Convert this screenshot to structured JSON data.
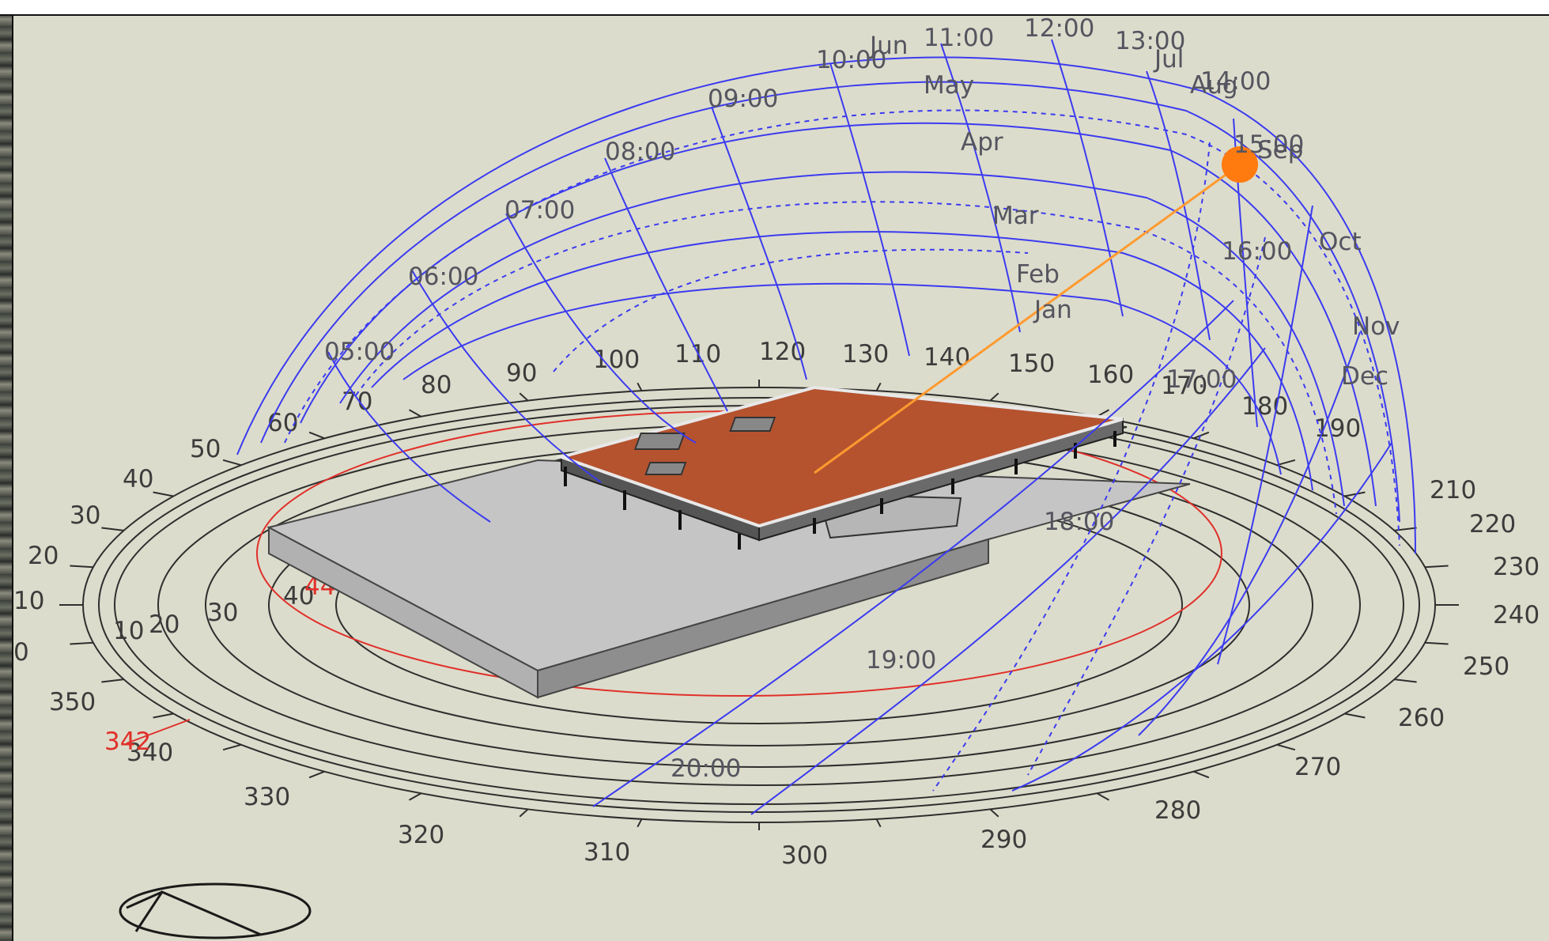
{
  "azimuth_labels": [
    "50",
    "40",
    "30",
    "20",
    "10",
    "0",
    "350",
    "340",
    "330",
    "320",
    "310",
    "300",
    "290",
    "280",
    "270",
    "260",
    "250",
    "240",
    "230",
    "220",
    "210",
    "190",
    "180",
    "170",
    "160",
    "150",
    "140",
    "130",
    "120",
    "110",
    "100",
    "90",
    "80",
    "70",
    "60"
  ],
  "inner_ring_labels": [
    "10",
    "20",
    "30",
    "40"
  ],
  "red_labels": {
    "azimuth": "342",
    "angle": "44"
  },
  "hour_labels": [
    "05:00",
    "06:00",
    "07:00",
    "08:00",
    "09:00",
    "10:00",
    "11:00",
    "12:00",
    "13:00",
    "14:00",
    "15:00",
    "16:00",
    "17:00",
    "18:00",
    "19:00",
    "20:00"
  ],
  "month_labels": [
    "Jun",
    "Jul",
    "May",
    "Aug",
    "Apr",
    "Sep",
    "Mar",
    "Oct",
    "Feb",
    "Nov",
    "Jan",
    "Dec"
  ],
  "colors": {
    "background": "#dcdccc",
    "sunpath": "#3b3bf0",
    "sun": "#ff7a0f",
    "sun_ray": "#ff9a2f",
    "roof": "#b5532f",
    "base": "#c7c7c7",
    "rings": "#2e2e2e",
    "red_marker": "#e0302a"
  }
}
